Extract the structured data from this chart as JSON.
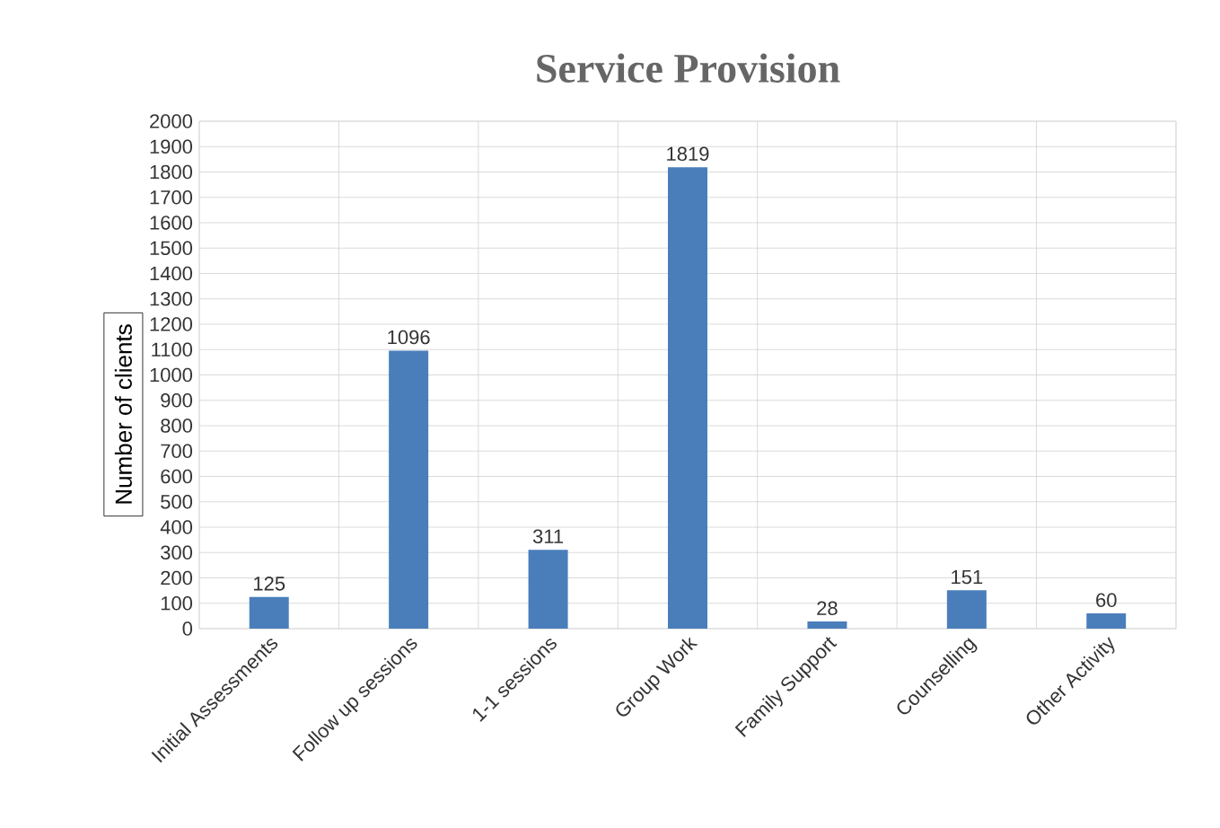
{
  "chart_data": {
    "type": "bar",
    "title": "Service Provision",
    "ylabel": "Number of clients",
    "categories": [
      "Initial Assessments",
      "Follow up sessions",
      "1-1 sessions",
      "Group Work",
      "Family Support",
      "Counselling",
      "Other Activity"
    ],
    "values": [
      125,
      1096,
      311,
      1819,
      28,
      151,
      60
    ],
    "color": "#4a7ebb",
    "ylim": [
      0,
      2000
    ],
    "yticks": [
      0,
      100,
      200,
      300,
      400,
      500,
      600,
      700,
      800,
      900,
      1000,
      1100,
      1200,
      1300,
      1400,
      1500,
      1600,
      1700,
      1800,
      1900,
      2000
    ],
    "grid": true,
    "data_labels": true
  }
}
